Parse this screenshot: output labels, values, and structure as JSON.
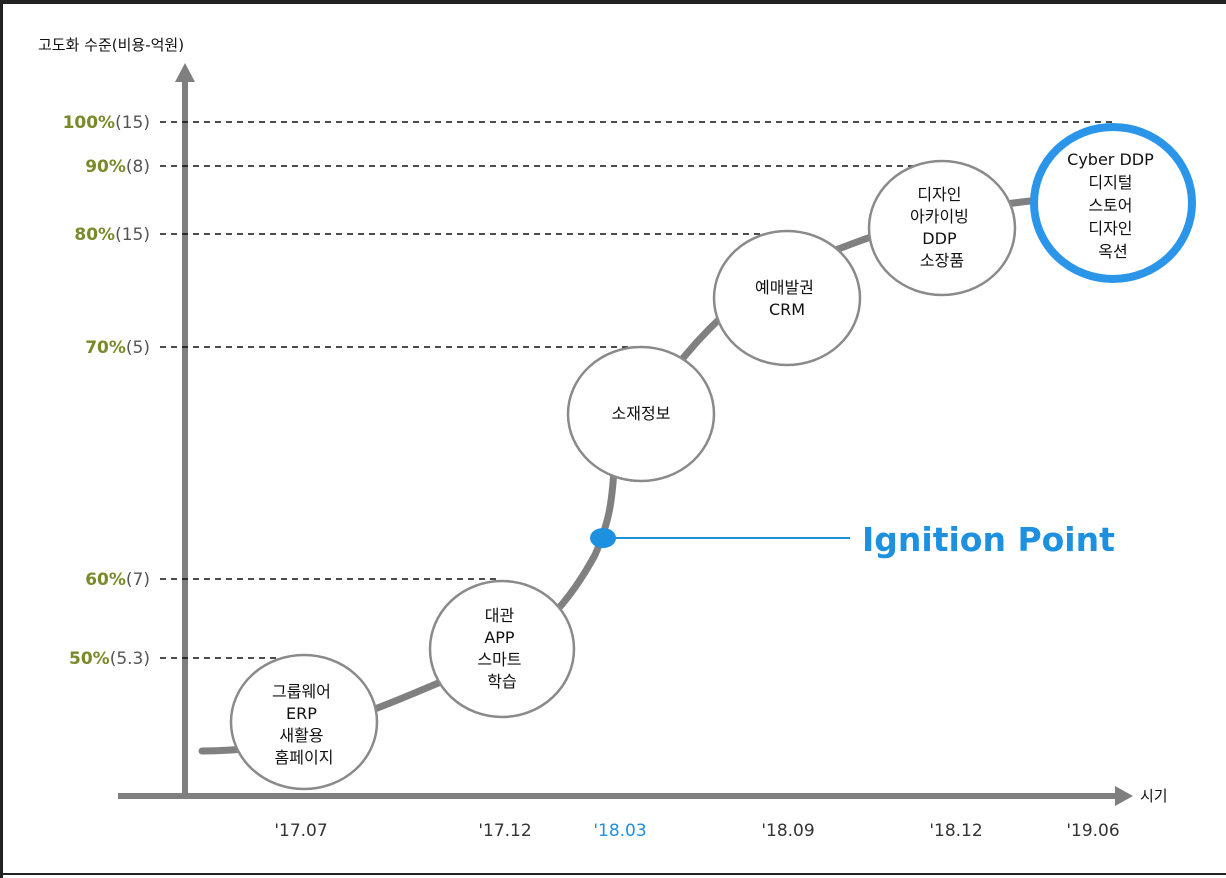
{
  "y_axis_title": "고도화 수준(비용-억원)",
  "x_axis_title": "시기",
  "y_levels": [
    {
      "pct": "100%",
      "cost": "(15)"
    },
    {
      "pct": "90%",
      "cost": "(8)"
    },
    {
      "pct": "80%",
      "cost": "(15)"
    },
    {
      "pct": "70%",
      "cost": "(5)"
    },
    {
      "pct": "60%",
      "cost": "(7)"
    },
    {
      "pct": "50%",
      "cost": "(5.3)"
    }
  ],
  "x_ticks": [
    "'17.07",
    "'17.12",
    "'18.03",
    "'18.09",
    "'18.12",
    "'19.06"
  ],
  "highlight_tick": "'18.03",
  "stages": [
    {
      "lines": [
        "그룹웨어",
        "ERP",
        "새활용",
        "홈페이지"
      ]
    },
    {
      "lines": [
        "대관",
        "APP",
        "스마트",
        "학습"
      ]
    },
    {
      "lines": [
        "소재정보"
      ]
    },
    {
      "lines": [
        "예매발권",
        "CRM"
      ]
    },
    {
      "lines": [
        "디자인",
        "아카이빙",
        "DDP",
        "소장품"
      ]
    },
    {
      "lines": [
        "Cyber DDP",
        "디지털",
        "스토어",
        "디자인",
        "옥션"
      ]
    }
  ],
  "ignition_label": "Ignition Point",
  "colors": {
    "level_green": "#7a8a2a",
    "level_cost_gray": "#555555",
    "accent_blue": "#1e90e0",
    "axis_gray": "#7f7f7f",
    "curve_gray": "#808080"
  }
}
